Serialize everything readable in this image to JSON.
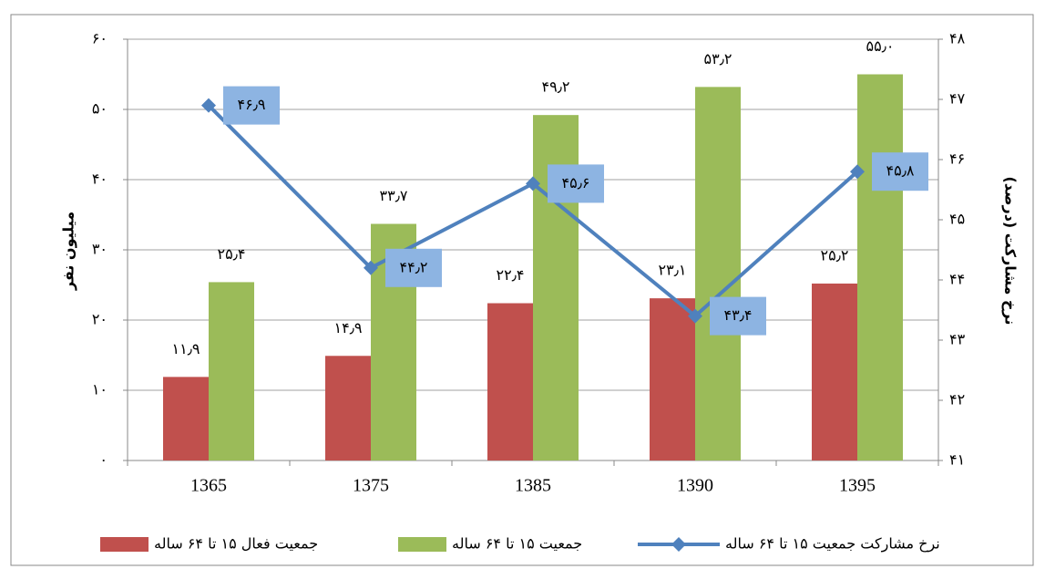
{
  "chart_data": {
    "type": "bar",
    "categories": [
      "1365",
      "1375",
      "1385",
      "1390",
      "1395"
    ],
    "ylabel": "میلیون نفر",
    "y2label": "نرخ مشارکت (درصد)",
    "ylim": [
      0,
      60
    ],
    "yticks": [
      {
        "value": 0,
        "label": "۰"
      },
      {
        "value": 10,
        "label": "۱۰"
      },
      {
        "value": 20,
        "label": "۲۰"
      },
      {
        "value": 30,
        "label": "۳۰"
      },
      {
        "value": 40,
        "label": "۴۰"
      },
      {
        "value": 50,
        "label": "۵۰"
      },
      {
        "value": 60,
        "label": "۶۰"
      }
    ],
    "y2lim": [
      41,
      48
    ],
    "y2ticks": [
      {
        "value": 41,
        "label": "۴۱"
      },
      {
        "value": 42,
        "label": "۴۲"
      },
      {
        "value": 43,
        "label": "۴۳"
      },
      {
        "value": 44,
        "label": "۴۴"
      },
      {
        "value": 45,
        "label": "۴۵"
      },
      {
        "value": 46,
        "label": "۴۶"
      },
      {
        "value": 47,
        "label": "۴۷"
      },
      {
        "value": 48,
        "label": "۴۸"
      }
    ],
    "grid": true,
    "legend": "bottom",
    "series": [
      {
        "name": "جمعیت فعال ۱۵ تا ۶۴ ساله",
        "type": "bar",
        "color": "#c0504d",
        "values": [
          11.9,
          14.9,
          22.4,
          23.1,
          25.2
        ],
        "value_labels": [
          "۱۱٫۹",
          "۱۴٫۹",
          "۲۲٫۴",
          "۲۳٫۱",
          "۲۵٫۲"
        ]
      },
      {
        "name": "جمعیت ۱۵ تا ۶۴ ساله",
        "type": "bar",
        "color": "#9bbb59",
        "values": [
          25.4,
          33.7,
          49.2,
          53.2,
          55.0
        ],
        "value_labels": [
          "۲۵٫۴",
          "۳۳٫۷",
          "۴۹٫۲",
          "۵۳٫۲",
          "۵۵٫۰"
        ]
      },
      {
        "name": "نرخ مشارکت جمعیت ۱۵ تا ۶۴ ساله",
        "type": "line",
        "axis": "y2",
        "color": "#4f81bd",
        "values": [
          46.9,
          44.2,
          45.6,
          43.4,
          45.8
        ],
        "value_labels": [
          "۴۶٫۹",
          "۴۴٫۲",
          "۴۵٫۶",
          "۴۳٫۴",
          "۴۵٫۸"
        ]
      }
    ]
  }
}
